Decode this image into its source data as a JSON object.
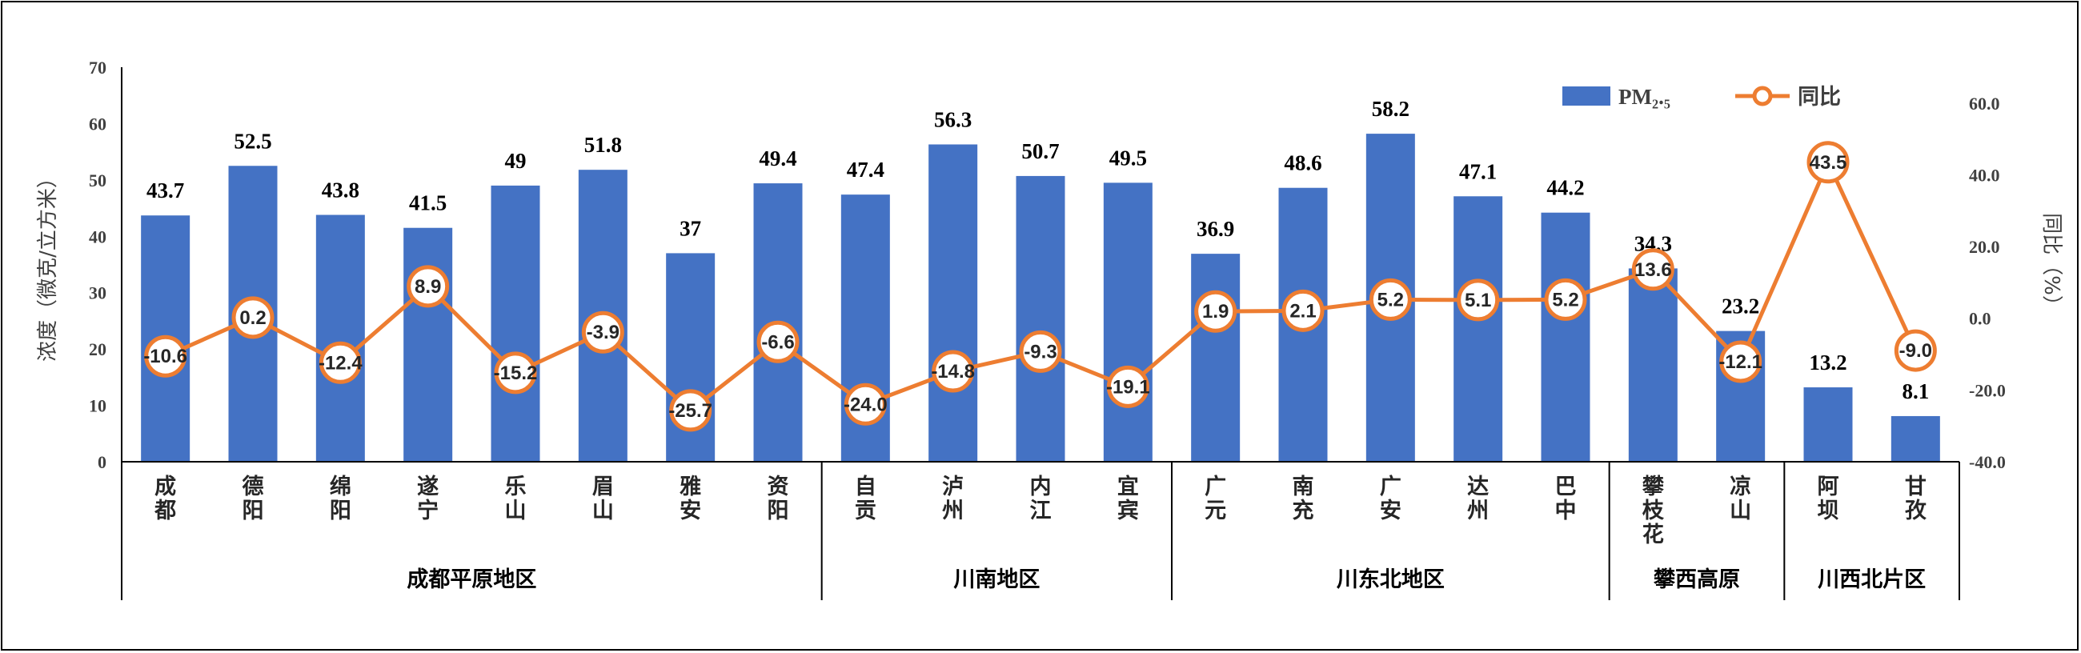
{
  "chart_data": {
    "type": "bar+line",
    "y_left": {
      "label": "浓度（微克/立方米）",
      "min": 0,
      "max": 70,
      "ticks": [
        "0",
        "10",
        "20",
        "30",
        "40",
        "50",
        "60",
        "70"
      ]
    },
    "y_right": {
      "label": "同比（%）",
      "min": -40,
      "max": 70,
      "ticks": [
        "-40.0",
        "-20.0",
        "0.0",
        "20.0",
        "40.0",
        "60.0"
      ]
    },
    "legend": {
      "bar_name": "PM₂.₅",
      "line_name": "同比",
      "placement": "top-right"
    },
    "colors": {
      "bar": "#4472C4",
      "line": "#ED7D31"
    },
    "categories": [
      {
        "name": "成都",
        "lines": [
          "成",
          "都"
        ],
        "pm25": 43.7,
        "pm25_label": "43.7",
        "yoy": -10.6,
        "yoy_label": "-10.6"
      },
      {
        "name": "德阳",
        "lines": [
          "德",
          "阳"
        ],
        "pm25": 52.5,
        "pm25_label": "52.5",
        "yoy": 0.2,
        "yoy_label": "0.2"
      },
      {
        "name": "绵阳",
        "lines": [
          "绵",
          "阳"
        ],
        "pm25": 43.8,
        "pm25_label": "43.8",
        "yoy": -12.4,
        "yoy_label": "-12.4"
      },
      {
        "name": "遂宁",
        "lines": [
          "遂",
          "宁"
        ],
        "pm25": 41.5,
        "pm25_label": "41.5",
        "yoy": 8.9,
        "yoy_label": "8.9"
      },
      {
        "name": "乐山",
        "lines": [
          "乐",
          "山"
        ],
        "pm25": 49,
        "pm25_label": "49",
        "yoy": -15.2,
        "yoy_label": "-15.2"
      },
      {
        "name": "眉山",
        "lines": [
          "眉",
          "山"
        ],
        "pm25": 51.8,
        "pm25_label": "51.8",
        "yoy": -3.9,
        "yoy_label": "-3.9"
      },
      {
        "name": "雅安",
        "lines": [
          "雅",
          "安"
        ],
        "pm25": 37,
        "pm25_label": "37",
        "yoy": -25.7,
        "yoy_label": "-25.7"
      },
      {
        "name": "资阳",
        "lines": [
          "资",
          "阳"
        ],
        "pm25": 49.4,
        "pm25_label": "49.4",
        "yoy": -6.6,
        "yoy_label": "-6.6"
      },
      {
        "name": "自贡",
        "lines": [
          "自",
          "贡"
        ],
        "pm25": 47.4,
        "pm25_label": "47.4",
        "yoy": -24.0,
        "yoy_label": "-24.0"
      },
      {
        "name": "泸州",
        "lines": [
          "泸",
          "州"
        ],
        "pm25": 56.3,
        "pm25_label": "56.3",
        "yoy": -14.8,
        "yoy_label": "-14.8"
      },
      {
        "name": "内江",
        "lines": [
          "内",
          "江"
        ],
        "pm25": 50.7,
        "pm25_label": "50.7",
        "yoy": -9.3,
        "yoy_label": "-9.3"
      },
      {
        "name": "宜宾",
        "lines": [
          "宜",
          "宾"
        ],
        "pm25": 49.5,
        "pm25_label": "49.5",
        "yoy": -19.1,
        "yoy_label": "-19.1"
      },
      {
        "name": "广元",
        "lines": [
          "广",
          "元"
        ],
        "pm25": 36.9,
        "pm25_label": "36.9",
        "yoy": 1.9,
        "yoy_label": "1.9"
      },
      {
        "name": "南充",
        "lines": [
          "南",
          "充"
        ],
        "pm25": 48.6,
        "pm25_label": "48.6",
        "yoy": 2.1,
        "yoy_label": "2.1"
      },
      {
        "name": "广安",
        "lines": [
          "广",
          "安"
        ],
        "pm25": 58.2,
        "pm25_label": "58.2",
        "yoy": 5.2,
        "yoy_label": "5.2"
      },
      {
        "name": "达州",
        "lines": [
          "达",
          "州"
        ],
        "pm25": 47.1,
        "pm25_label": "47.1",
        "yoy": 5.1,
        "yoy_label": "5.1"
      },
      {
        "name": "巴中",
        "lines": [
          "巴",
          "中"
        ],
        "pm25": 44.2,
        "pm25_label": "44.2",
        "yoy": 5.2,
        "yoy_label": "5.2"
      },
      {
        "name": "攀枝花",
        "lines": [
          "攀",
          "枝",
          "花"
        ],
        "pm25": 34.3,
        "pm25_label": "34.3",
        "yoy": 13.6,
        "yoy_label": "13.6"
      },
      {
        "name": "凉山",
        "lines": [
          "凉",
          "山"
        ],
        "pm25": 23.2,
        "pm25_label": "23.2",
        "yoy": -12.1,
        "yoy_label": "-12.1"
      },
      {
        "name": "阿坝",
        "lines": [
          "阿",
          "坝"
        ],
        "pm25": 13.2,
        "pm25_label": "13.2",
        "yoy": 43.5,
        "yoy_label": "43.5"
      },
      {
        "name": "甘孜",
        "lines": [
          "甘",
          "孜"
        ],
        "pm25": 8.1,
        "pm25_label": "8.1",
        "yoy": -9.0,
        "yoy_label": "-9.0"
      }
    ],
    "groups": [
      {
        "name": "成都平原地区",
        "start": 0,
        "end": 7
      },
      {
        "name": "川南地区",
        "start": 8,
        "end": 11
      },
      {
        "name": "川东北地区",
        "start": 12,
        "end": 16
      },
      {
        "name": "攀西高原",
        "start": 17,
        "end": 18
      },
      {
        "name": "川西北片区",
        "start": 19,
        "end": 20
      }
    ]
  }
}
